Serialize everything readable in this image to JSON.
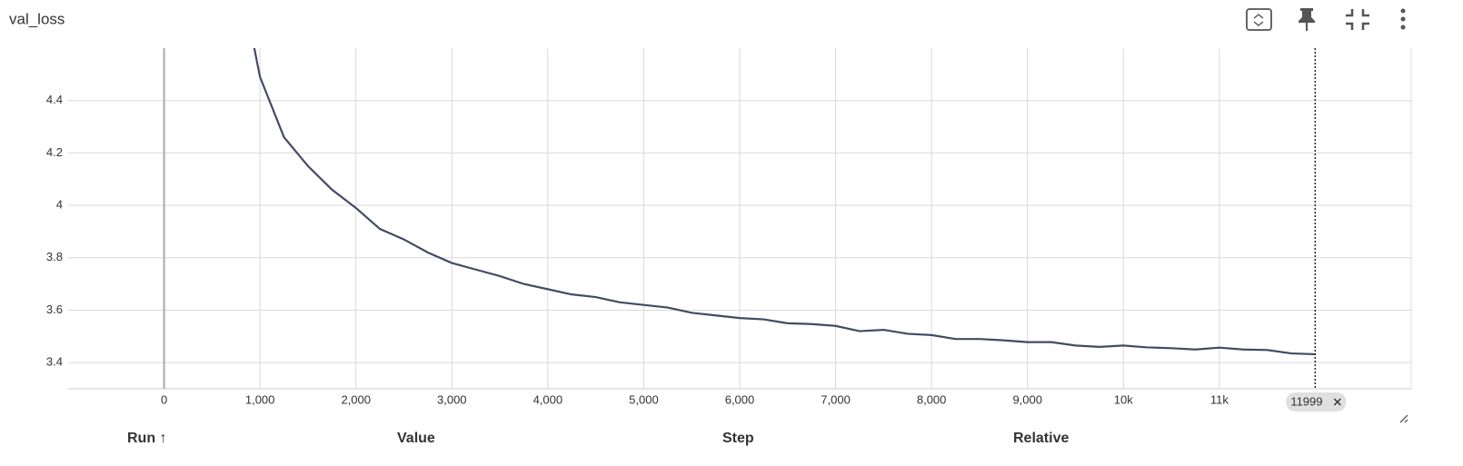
{
  "chart_data": {
    "type": "line",
    "title": "val_loss",
    "color": "#424b63",
    "x": [
      750,
      1000,
      1250,
      1500,
      1750,
      2000,
      2250,
      2500,
      2750,
      3000,
      3250,
      3500,
      3750,
      4000,
      4250,
      4500,
      4750,
      5000,
      5250,
      5500,
      5750,
      6000,
      6250,
      6500,
      6750,
      7000,
      7250,
      7500,
      7750,
      8000,
      8250,
      8500,
      8750,
      9000,
      9250,
      9500,
      9750,
      10000,
      10250,
      10500,
      10750,
      11000,
      11250,
      11500,
      11750,
      11999
    ],
    "values": [
      4.95,
      4.49,
      4.26,
      4.15,
      4.06,
      3.99,
      3.91,
      3.87,
      3.82,
      3.78,
      3.755,
      3.73,
      3.7,
      3.68,
      3.66,
      3.65,
      3.63,
      3.62,
      3.61,
      3.59,
      3.58,
      3.57,
      3.565,
      3.55,
      3.547,
      3.54,
      3.52,
      3.525,
      3.51,
      3.505,
      3.49,
      3.49,
      3.485,
      3.478,
      3.478,
      3.465,
      3.46,
      3.465,
      3.458,
      3.455,
      3.45,
      3.457,
      3.45,
      3.448,
      3.435,
      3.432
    ],
    "xlim": [
      -1000,
      13000
    ],
    "ylim": [
      3.3,
      4.6
    ],
    "xticks": [
      0,
      {
        "value": 1000,
        "label": "1,000"
      },
      {
        "value": 2000,
        "label": "2,000"
      },
      {
        "value": 3000,
        "label": "3,000"
      },
      {
        "value": 4000,
        "label": "4,000"
      },
      {
        "value": 5000,
        "label": "5,000"
      },
      {
        "value": 6000,
        "label": "6,000"
      },
      {
        "value": 7000,
        "label": "7,000"
      },
      {
        "value": 8000,
        "label": "8,000"
      },
      {
        "value": 9000,
        "label": "9,000"
      },
      {
        "value": 10000,
        "label": "10k"
      },
      {
        "value": 11000,
        "label": "11k"
      }
    ],
    "yticks": [
      3.4,
      3.6,
      3.8,
      4,
      4.2,
      4.4
    ],
    "grid": true,
    "cursor_step": 11999,
    "table_headers": [
      "Run ↑",
      "Value",
      "Step",
      "Relative"
    ]
  }
}
